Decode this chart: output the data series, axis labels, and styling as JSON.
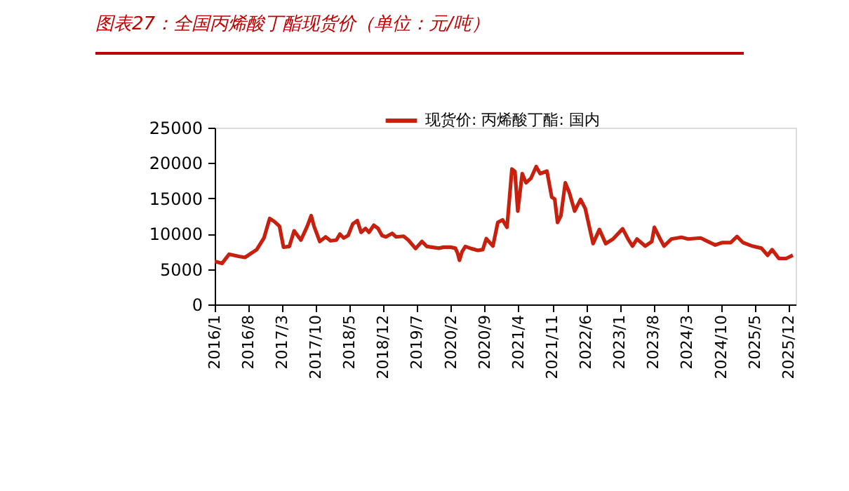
{
  "chart_data": {
    "type": "line",
    "title": "图表27：全国丙烯酸丁酯现货价（单位：元/吨）",
    "x": [
      "2016-01-01",
      "2016-02-16",
      "2016-04-01",
      "2016-06-01",
      "2016-07-10",
      "2016-09-22",
      "2016-11-07",
      "2016-12-13",
      "2017-01-13",
      "2017-02-13",
      "2017-03-10",
      "2017-04-16",
      "2017-05-16",
      "2017-06-28",
      "2017-08-07",
      "2017-09-01",
      "2017-09-19",
      "2017-10-25",
      "2017-12-01",
      "2018-01-01",
      "2018-02-07",
      "2018-03-01",
      "2018-03-25",
      "2018-04-22",
      "2018-05-22",
      "2018-06-19",
      "2018-07-13",
      "2018-08-10",
      "2018-09-01",
      "2018-10-01",
      "2018-10-28",
      "2018-11-22",
      "2018-12-16",
      "2019-01-25",
      "2019-02-19",
      "2019-04-07",
      "2019-05-07",
      "2019-06-22",
      "2019-08-01",
      "2019-09-01",
      "2019-10-01",
      "2019-11-16",
      "2019-12-16",
      "2020-01-28",
      "2020-02-28",
      "2020-03-13",
      "2020-03-25",
      "2020-04-10",
      "2020-05-01",
      "2020-06-07",
      "2020-07-19",
      "2020-08-19",
      "2020-09-10",
      "2020-10-22",
      "2020-11-22",
      "2020-12-22",
      "2021-01-19",
      "2021-02-19",
      "2021-03-10",
      "2021-03-28",
      "2021-04-25",
      "2021-05-19",
      "2021-06-19",
      "2021-07-22",
      "2021-08-16",
      "2021-09-28",
      "2021-10-28",
      "2021-11-16",
      "2021-12-04",
      "2021-12-25",
      "2022-01-22",
      "2022-02-16",
      "2022-03-22",
      "2022-04-28",
      "2022-05-28",
      "2022-07-16",
      "2022-08-25",
      "2022-10-04",
      "2022-11-19",
      "2023-01-19",
      "2023-02-22",
      "2023-03-22",
      "2023-04-19",
      "2023-06-10",
      "2023-07-22",
      "2023-08-07",
      "2023-09-13",
      "2023-10-07",
      "2023-11-22",
      "2024-01-25",
      "2024-03-07",
      "2024-05-25",
      "2024-07-10",
      "2024-08-25",
      "2024-10-10",
      "2024-12-01",
      "2025-01-10",
      "2025-02-16",
      "2025-04-16",
      "2025-06-13",
      "2025-07-22",
      "2025-08-19",
      "2025-10-01",
      "2025-11-16",
      "2025-12-28"
    ],
    "series": [
      {
        "name": "现货价: 丙烯酸丁酯: 国内",
        "color": "#c8200e",
        "values": [
          6100,
          5800,
          7100,
          6800,
          6650,
          7750,
          9400,
          12150,
          11700,
          11050,
          8100,
          8200,
          10400,
          9100,
          11050,
          12550,
          11050,
          8900,
          9550,
          9000,
          9100,
          9950,
          9400,
          9750,
          11400,
          11850,
          10200,
          10750,
          10200,
          11200,
          10750,
          9750,
          9550,
          10050,
          9550,
          9650,
          9100,
          7900,
          8900,
          8200,
          8100,
          7950,
          8100,
          8100,
          7950,
          7250,
          6250,
          7450,
          8200,
          7900,
          7650,
          7750,
          9300,
          8250,
          11600,
          11950,
          10900,
          19150,
          18800,
          13200,
          18500,
          17200,
          17850,
          19500,
          18500,
          18850,
          15200,
          14900,
          11600,
          12550,
          17200,
          15850,
          13200,
          14850,
          13550,
          8600,
          10600,
          8600,
          9250,
          10700,
          9250,
          8250,
          9250,
          8250,
          8900,
          10900,
          9250,
          8250,
          9250,
          9500,
          9250,
          9400,
          8900,
          8400,
          8750,
          8750,
          9600,
          8750,
          8250,
          7950,
          6950,
          7750,
          6500,
          6500,
          6950
        ]
      }
    ],
    "xlim": [
      "2016-01-01",
      "2026-01-15"
    ],
    "xticks": [
      {
        "value": "2016-01-01",
        "label": "2016/1"
      },
      {
        "value": "2016-08-01",
        "label": "2016/8"
      },
      {
        "value": "2017-03-01",
        "label": "2017/3"
      },
      {
        "value": "2017-10-01",
        "label": "2017/10"
      },
      {
        "value": "2018-05-01",
        "label": "2018/5"
      },
      {
        "value": "2018-12-01",
        "label": "2018/12"
      },
      {
        "value": "2019-07-01",
        "label": "2019/7"
      },
      {
        "value": "2020-02-01",
        "label": "2020/2"
      },
      {
        "value": "2020-09-01",
        "label": "2020/9"
      },
      {
        "value": "2021-04-01",
        "label": "2021/4"
      },
      {
        "value": "2021-11-01",
        "label": "2021/11"
      },
      {
        "value": "2022-06-01",
        "label": "2022/6"
      },
      {
        "value": "2023-01-01",
        "label": "2023/1"
      },
      {
        "value": "2023-08-01",
        "label": "2023/8"
      },
      {
        "value": "2024-03-01",
        "label": "2024/3"
      },
      {
        "value": "2024-10-01",
        "label": "2024/10"
      },
      {
        "value": "2025-05-01",
        "label": "2025/5"
      },
      {
        "value": "2025-12-01",
        "label": "2025/12"
      }
    ],
    "ylim": [
      0,
      25000
    ],
    "yticks": [
      0,
      5000,
      10000,
      15000,
      20000,
      25000
    ],
    "grid": false,
    "legend": "top",
    "marker": "none",
    "line_style": "solid"
  }
}
